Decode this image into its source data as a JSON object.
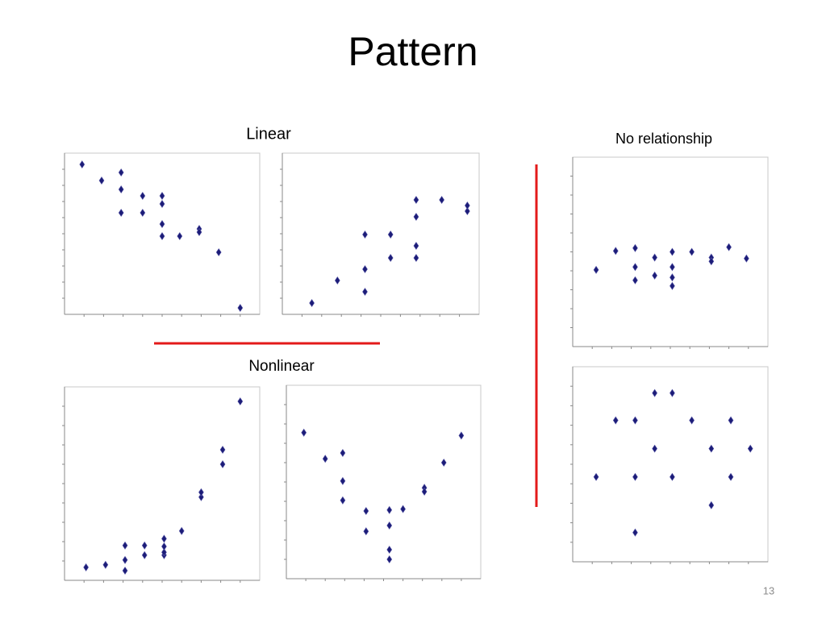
{
  "title": "Pattern",
  "labels": {
    "linear": "Linear",
    "nonlinear": "Nonlinear",
    "none": "No relationship"
  },
  "page_number": "13",
  "chart_data": [
    {
      "type": "scatter",
      "color": "#1c1c78",
      "xlim": [
        0,
        10
      ],
      "ylim": [
        0,
        10
      ],
      "x": [
        0.9,
        1.9,
        2.9,
        2.9,
        2.9,
        4.0,
        4.0,
        5.0,
        5.0,
        5.0,
        5.0,
        5.9,
        6.9,
        6.9,
        7.9,
        9.0
      ],
      "y": [
        9.3,
        8.3,
        8.8,
        7.75,
        6.3,
        7.35,
        6.3,
        7.35,
        6.85,
        5.6,
        4.85,
        4.85,
        5.3,
        5.1,
        3.85,
        0.4
      ]
    },
    {
      "type": "scatter",
      "color": "#1c1c78",
      "xlim": [
        0,
        10
      ],
      "ylim": [
        0,
        10
      ],
      "x": [
        1.5,
        2.8,
        4.2,
        4.2,
        4.2,
        5.5,
        5.5,
        6.8,
        6.8,
        6.8,
        6.8,
        8.1,
        9.4,
        9.4
      ],
      "y": [
        0.7,
        2.1,
        1.4,
        2.8,
        4.95,
        3.5,
        4.95,
        3.5,
        4.25,
        6.05,
        7.1,
        7.1,
        6.4,
        6.75
      ]
    },
    {
      "type": "scatter",
      "color": "#1c1c78",
      "xlim": [
        0,
        10
      ],
      "ylim": [
        0,
        10
      ],
      "x": [
        1.1,
        2.1,
        3.1,
        3.1,
        3.1,
        4.1,
        4.1,
        5.1,
        5.1,
        5.1,
        5.1,
        6.0,
        7.0,
        7.0,
        8.1,
        8.1,
        9.0
      ],
      "y": [
        0.67,
        0.8,
        0.5,
        1.05,
        1.8,
        1.3,
        1.8,
        1.3,
        1.45,
        1.75,
        2.15,
        2.55,
        4.3,
        4.55,
        6.0,
        6.75,
        9.25
      ]
    },
    {
      "type": "scatter",
      "color": "#1c1c78",
      "xlim": [
        0,
        10
      ],
      "ylim": [
        0,
        10
      ],
      "x": [
        0.9,
        2.0,
        2.9,
        2.9,
        2.9,
        4.1,
        4.1,
        5.3,
        5.3,
        5.3,
        5.3,
        6.0,
        7.1,
        7.1,
        8.1,
        9.0
      ],
      "y": [
        7.55,
        6.2,
        6.5,
        5.05,
        4.05,
        3.5,
        2.45,
        3.55,
        2.75,
        1.5,
        1.0,
        3.6,
        4.7,
        4.5,
        6.0,
        7.4
      ]
    },
    {
      "type": "scatter",
      "color": "#1c1c78",
      "xlim": [
        0,
        10
      ],
      "ylim": [
        0,
        10
      ],
      "x": [
        1.2,
        2.2,
        3.2,
        3.2,
        3.2,
        4.2,
        4.2,
        5.1,
        5.1,
        5.1,
        5.1,
        6.1,
        7.1,
        7.1,
        8.0,
        8.9
      ],
      "y": [
        4.05,
        5.05,
        5.2,
        4.2,
        3.5,
        4.7,
        3.75,
        5.0,
        4.2,
        3.65,
        3.2,
        5.0,
        4.7,
        4.5,
        5.25,
        4.65
      ]
    },
    {
      "type": "scatter",
      "color": "#1c1c78",
      "xlim": [
        0,
        10
      ],
      "ylim": [
        0,
        10
      ],
      "x": [
        1.2,
        2.2,
        3.2,
        3.2,
        3.2,
        4.2,
        4.2,
        5.1,
        5.1,
        6.1,
        7.1,
        7.1,
        8.1,
        8.1,
        9.1
      ],
      "y": [
        4.35,
        7.25,
        7.25,
        4.35,
        1.5,
        8.65,
        5.8,
        8.65,
        4.35,
        7.25,
        5.8,
        2.9,
        7.25,
        4.35,
        5.8
      ]
    }
  ]
}
